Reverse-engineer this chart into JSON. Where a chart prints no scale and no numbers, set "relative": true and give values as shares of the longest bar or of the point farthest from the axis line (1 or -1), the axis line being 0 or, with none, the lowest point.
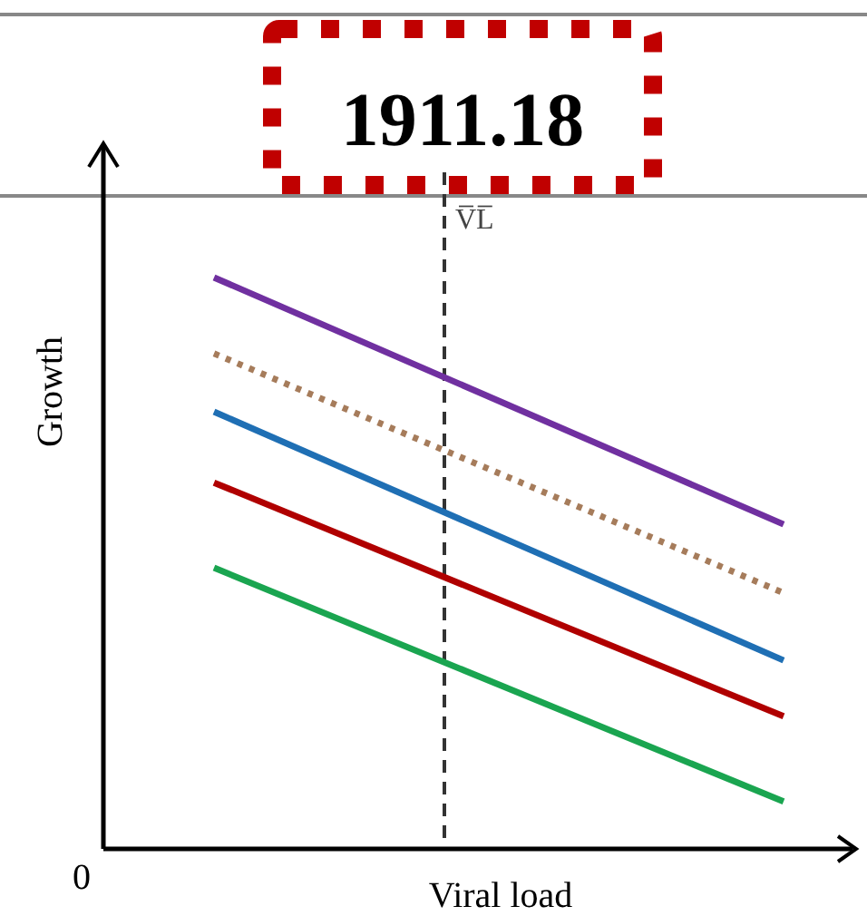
{
  "chart_data": {
    "type": "line",
    "relative": true,
    "xlabel": "Viral load",
    "ylabel": "Growth",
    "categories": [
      null,
      null
    ],
    "series": [
      {
        "color": "#7030a0",
        "values": [
          1,
          0.568
        ]
      },
      {
        "color": "#a67c5b",
        "values": [
          0.867,
          0.448
        ],
        "line_style": "dotted"
      },
      {
        "color": "#1f6fb4",
        "values": [
          0.765,
          0.33
        ]
      },
      {
        "color": "#b00000",
        "values": [
          0.641,
          0.232
        ]
      },
      {
        "color": "#1aa550",
        "values": [
          0.492,
          0.083
        ]
      }
    ],
    "annotations": [
      "1911.18",
      "0",
      "V̅L̅"
    ],
    "marker": "none"
  }
}
